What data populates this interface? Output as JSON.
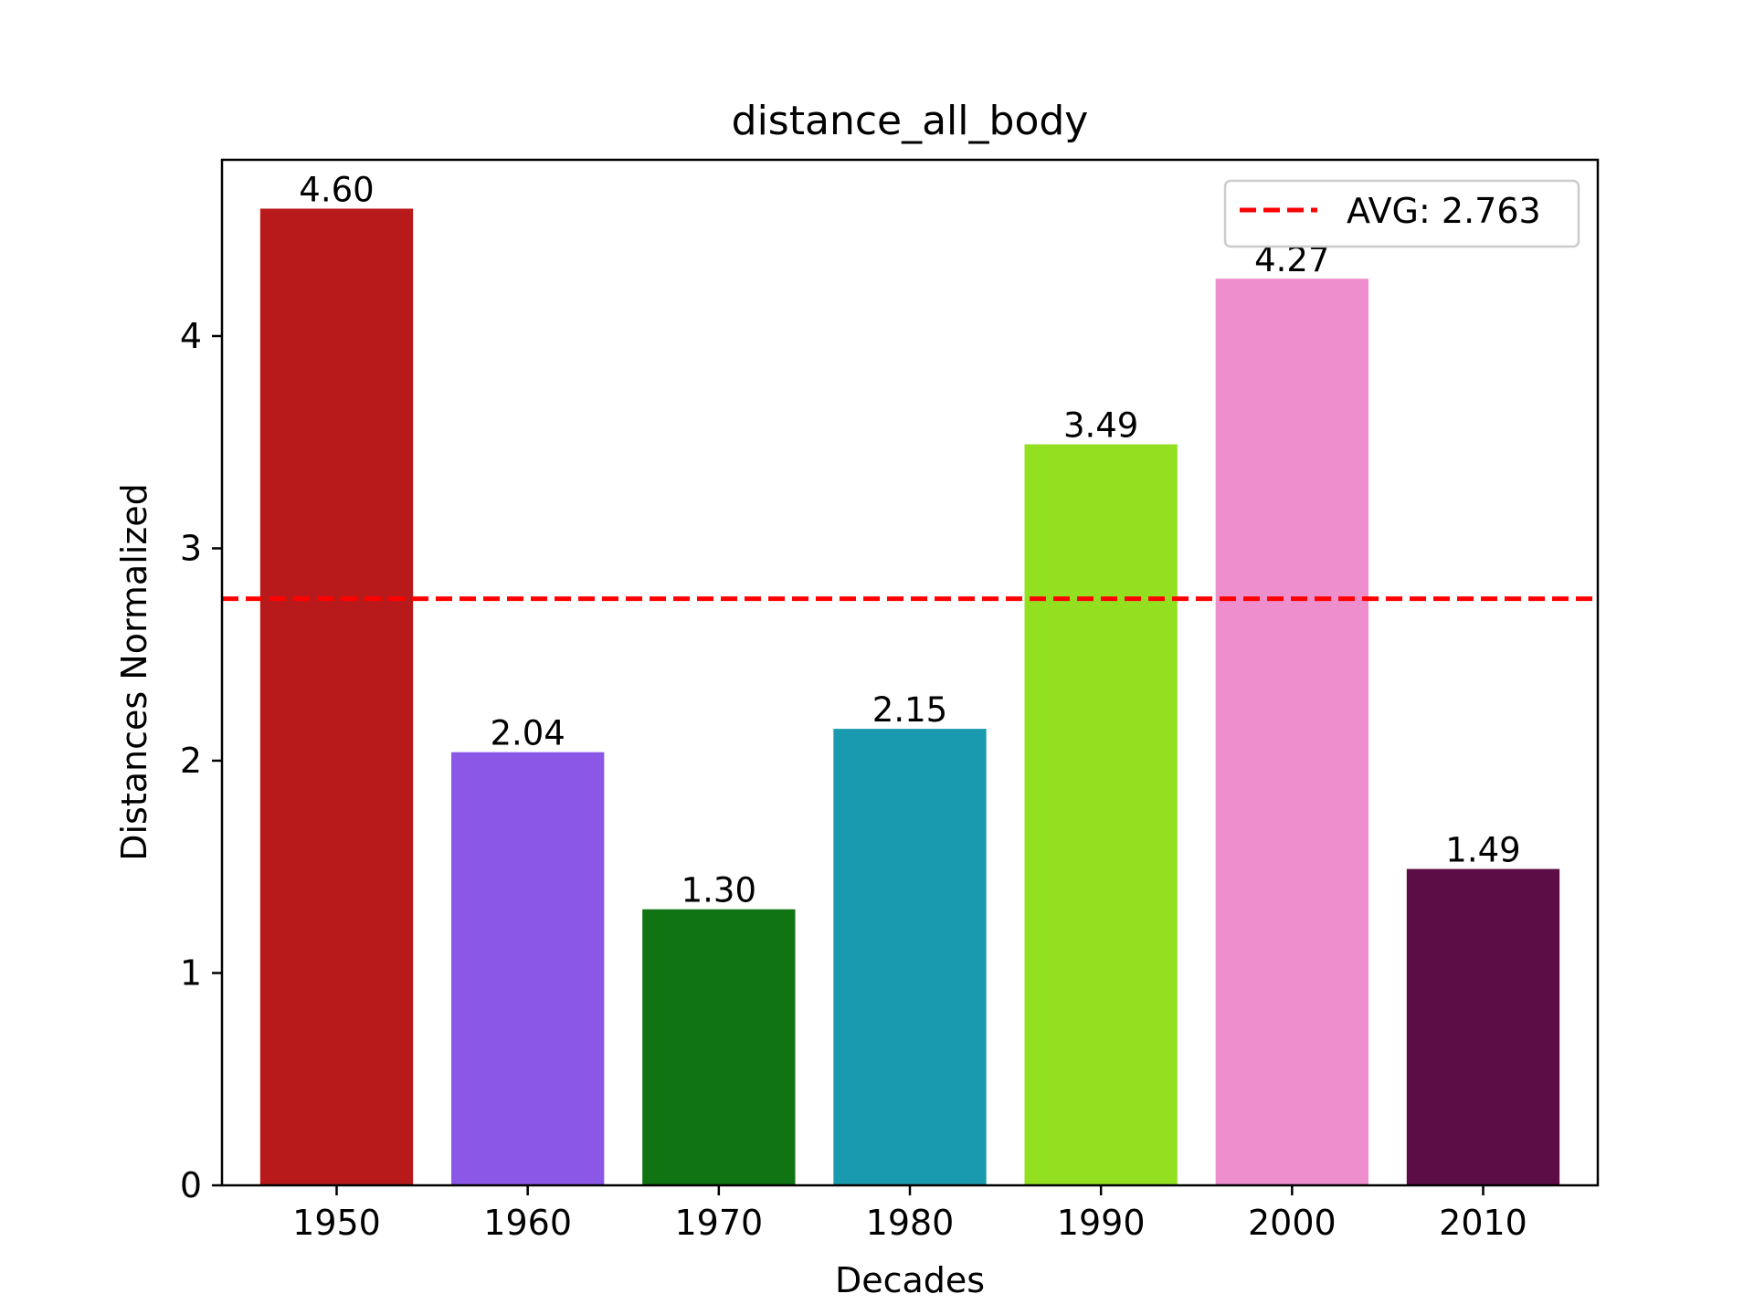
{
  "chart_data": {
    "type": "bar",
    "title": "distance_all_body",
    "xlabel": "Decades",
    "ylabel": "Distances Normalized",
    "categories": [
      "1950",
      "1960",
      "1970",
      "1980",
      "1990",
      "2000",
      "2010"
    ],
    "values": [
      4.6,
      2.04,
      1.3,
      2.15,
      3.49,
      4.27,
      1.49
    ],
    "value_labels": [
      "4.60",
      "2.04",
      "1.30",
      "2.15",
      "3.49",
      "4.27",
      "1.49"
    ],
    "bar_colors": [
      "#b8191b",
      "#8b57e6",
      "#117413",
      "#1a9aae",
      "#93e021",
      "#ee8ecd",
      "#5c0d45"
    ],
    "ylim": [
      0,
      4.83
    ],
    "yticks": [
      0,
      1,
      2,
      3,
      4
    ],
    "ytick_labels": [
      "0",
      "1",
      "2",
      "3",
      "4"
    ],
    "average": {
      "value": 2.763,
      "label": "AVG: 2.763",
      "color": "#ff0000",
      "style": "dashed"
    },
    "legend": {
      "position": "top-right",
      "entries": [
        "AVG: 2.763"
      ]
    },
    "grid": false
  }
}
